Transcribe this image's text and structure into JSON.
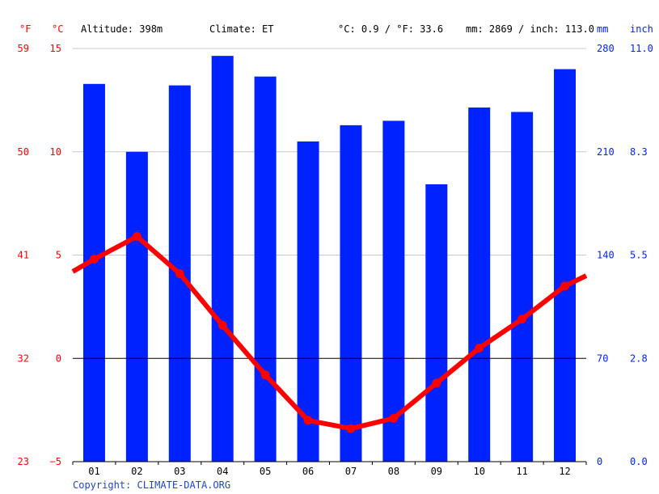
{
  "header": {
    "altitude": "Altitude: 398m",
    "climate": "Climate: ET",
    "temp_avg": "°C: 0.9 / °F: 33.6",
    "precip_total": "mm: 2869 / inch: 113.0"
  },
  "axis_units": {
    "fahrenheit": "°F",
    "celsius": "°C",
    "mm": "mm",
    "inch": "inch"
  },
  "copyright": "Copyright: CLIMATE-DATA.ORG",
  "colors": {
    "temperature": "#ff0000",
    "precipitation": "#0022ff",
    "grid": "#c8c8c8",
    "zero_line": "#000000",
    "copyright": "#2244cc"
  },
  "chart_data": {
    "type": "bar",
    "categories": [
      "01",
      "02",
      "03",
      "04",
      "05",
      "06",
      "07",
      "08",
      "09",
      "10",
      "11",
      "12"
    ],
    "series": [
      {
        "type": "bar",
        "axis": "right",
        "unit": "mm",
        "values": [
          256,
          210,
          255,
          275,
          261,
          217,
          228,
          231,
          188,
          240,
          237,
          266
        ]
      },
      {
        "type": "line",
        "axis": "left",
        "unit": "°C",
        "values": [
          4.8,
          5.9,
          4.1,
          1.6,
          -0.8,
          -3.0,
          -3.4,
          -2.9,
          -1.2,
          0.5,
          1.9,
          3.5
        ]
      }
    ],
    "temperature_line_ends": [
      4.2,
      4.0
    ],
    "left_axis_celsius": {
      "ticks": [
        15,
        10,
        5,
        0,
        -5
      ],
      "ylim": [
        -5,
        15
      ]
    },
    "left_axis_fahrenheit": {
      "ticks": [
        "59",
        "50",
        "41",
        "32",
        "23"
      ]
    },
    "right_axis_mm": {
      "ticks": [
        280,
        210,
        140,
        70,
        0
      ],
      "ylim": [
        0,
        280
      ]
    },
    "right_axis_inch": {
      "ticks": [
        "11.0",
        "8.3",
        "5.5",
        "2.8",
        "0.0"
      ]
    },
    "grid": true
  }
}
